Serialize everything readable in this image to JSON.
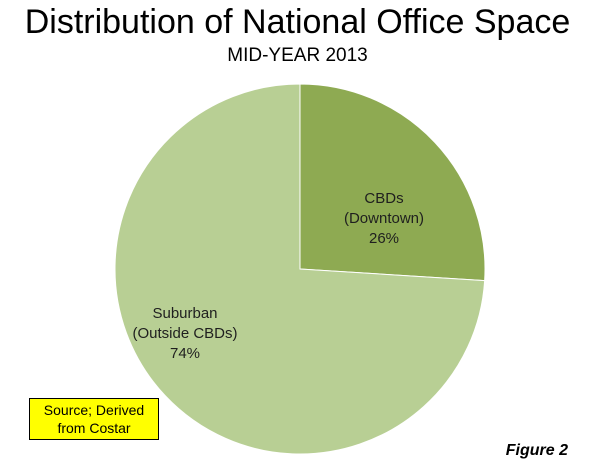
{
  "chart_data": {
    "type": "pie",
    "title": "Distribution of National Office Space",
    "subtitle": "MID-YEAR 2013",
    "slices": [
      {
        "label_lines": [
          "CBDs",
          "(Downtown)",
          "26%"
        ],
        "value": 26,
        "color": "#8eaa52"
      },
      {
        "label_lines": [
          "Suburban",
          "(Outside CBDs)",
          "74%"
        ],
        "value": 74,
        "color": "#b8cf94"
      }
    ],
    "start_angle": "12 o'clock, clockwise",
    "legend": "none",
    "data_labels": "inside slices"
  },
  "source_note": "Source; Derived from Costar",
  "figure_label": "Figure 2"
}
